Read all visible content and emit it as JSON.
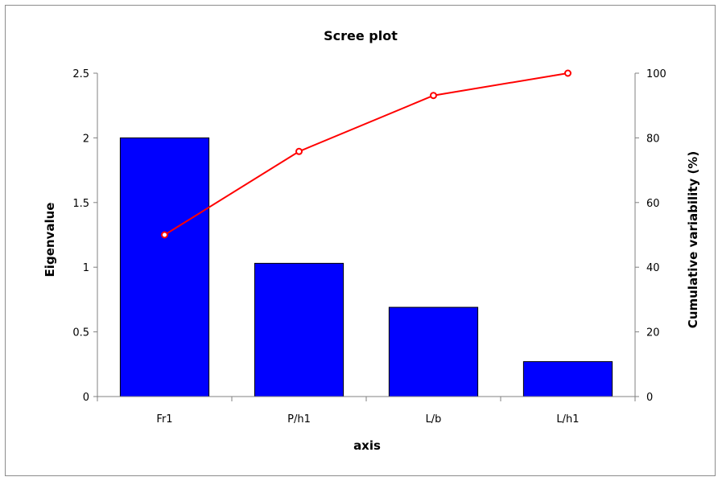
{
  "chart_data": {
    "type": "bar",
    "title": "Scree plot",
    "xlabel": "axis",
    "ylabel": "Eigenvalue",
    "y2label": "Cumulative variability (%)",
    "categories": [
      "Fr1",
      "P/h1",
      "L/b",
      "L/h1"
    ],
    "ylim": [
      0,
      2.5
    ],
    "y2lim": [
      0,
      100
    ],
    "yticks": [
      "0",
      "0.5",
      "1",
      "1.5",
      "2",
      "2.5"
    ],
    "y2ticks": [
      "0",
      "20",
      "40",
      "60",
      "80",
      "100"
    ],
    "grid": false,
    "legend": "none",
    "series": [
      {
        "type": "bar",
        "axis": "left",
        "values": [
          2.0,
          1.03,
          0.69,
          0.27
        ],
        "color": "#0000ff"
      },
      {
        "type": "line",
        "axis": "right",
        "values": [
          50,
          75.8,
          93.1,
          100
        ],
        "color": "#ff0000"
      }
    ]
  }
}
